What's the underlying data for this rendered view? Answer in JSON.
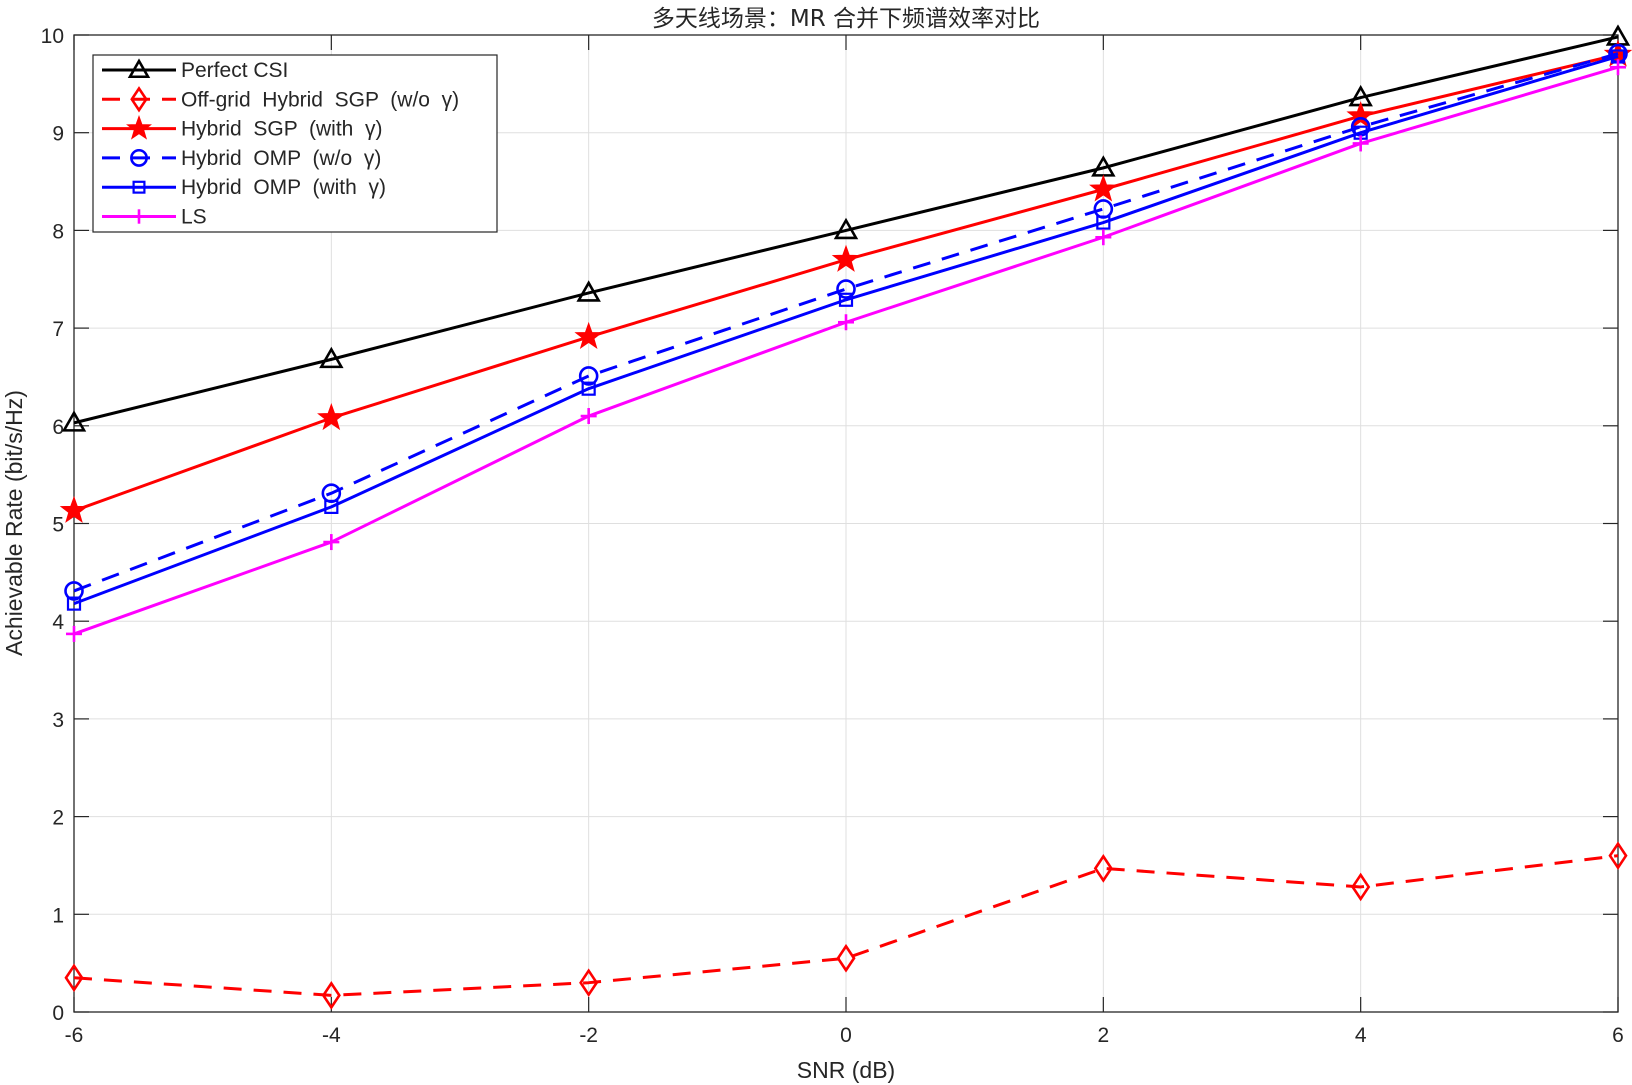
{
  "chart_data": {
    "type": "line",
    "title": "多天线场景：MR 合并下频谱效率对比",
    "xlabel": "SNR (dB)",
    "ylabel": "Achievable Rate (bit/s/Hz)",
    "x": [
      -6,
      -4,
      -2,
      0,
      2,
      4,
      6
    ],
    "xlim": [
      -6,
      6
    ],
    "ylim": [
      0,
      10
    ],
    "xticks": [
      -6,
      -4,
      -2,
      0,
      2,
      4,
      6
    ],
    "yticks": [
      0,
      1,
      2,
      3,
      4,
      5,
      6,
      7,
      8,
      9,
      10
    ],
    "grid": true,
    "legend_position": "upper left",
    "series": [
      {
        "name": "Perfect CSI",
        "color": "#000000",
        "dash": "solid",
        "marker": "triangle",
        "values": [
          6.03,
          6.68,
          7.36,
          8.0,
          8.64,
          9.36,
          9.98
        ]
      },
      {
        "name": "Off-grid  Hybrid  SGP  (w/o  γ)",
        "color": "#ff0000",
        "dash": "dashed",
        "marker": "diamond",
        "values": [
          0.35,
          0.17,
          0.3,
          0.55,
          1.47,
          1.28,
          1.6
        ]
      },
      {
        "name": "Hybrid  SGP  (with  γ)",
        "color": "#ff0000",
        "dash": "solid",
        "marker": "star",
        "values": [
          5.13,
          6.08,
          6.91,
          7.7,
          8.42,
          9.17,
          9.8
        ]
      },
      {
        "name": "Hybrid  OMP  (w/o  γ)",
        "color": "#0000ff",
        "dash": "dashed",
        "marker": "circle",
        "values": [
          4.31,
          5.31,
          6.51,
          7.4,
          8.22,
          9.06,
          9.81
        ]
      },
      {
        "name": "Hybrid  OMP  (with  γ)",
        "color": "#0000ff",
        "dash": "solid",
        "marker": "square",
        "values": [
          4.18,
          5.17,
          6.38,
          7.29,
          8.08,
          9.0,
          9.78
        ]
      },
      {
        "name": "LS",
        "color": "#ff00ff",
        "dash": "solid",
        "marker": "plus",
        "values": [
          3.87,
          4.81,
          6.1,
          7.06,
          7.93,
          8.89,
          9.67
        ]
      }
    ]
  }
}
